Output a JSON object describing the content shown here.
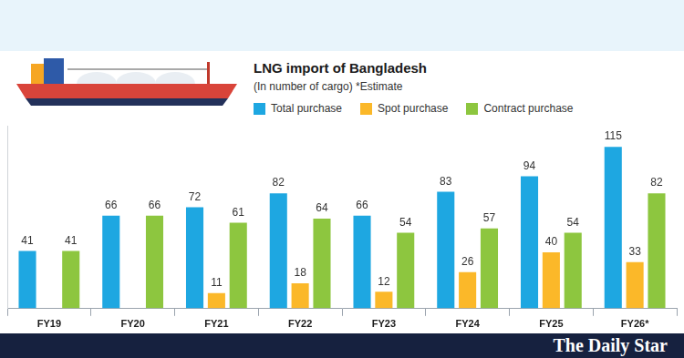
{
  "chart_data": {
    "type": "bar",
    "title": "LNG import of Bangladesh",
    "subtitle": "(In number of cargo) *Estimate",
    "categories": [
      "FY19",
      "FY20",
      "FY21",
      "FY22",
      "FY23",
      "FY24",
      "FY25",
      "FY26*"
    ],
    "series": [
      {
        "name": "Total purchase",
        "color": "#1ea7e1",
        "values": [
          41,
          66,
          72,
          82,
          66,
          83,
          94,
          115
        ]
      },
      {
        "name": "Spot purchase",
        "color": "#fbb829",
        "values": [
          null,
          null,
          11,
          18,
          12,
          26,
          40,
          33
        ]
      },
      {
        "name": "Contract purchase",
        "color": "#8dc63f",
        "values": [
          41,
          66,
          61,
          64,
          54,
          57,
          54,
          82
        ]
      }
    ],
    "ylim": [
      0,
      130
    ],
    "yticks": [
      0
    ],
    "grid": false,
    "legend": "top-left",
    "data_labels": true,
    "tick_labels": "x",
    "credit": "The Daily Star"
  }
}
